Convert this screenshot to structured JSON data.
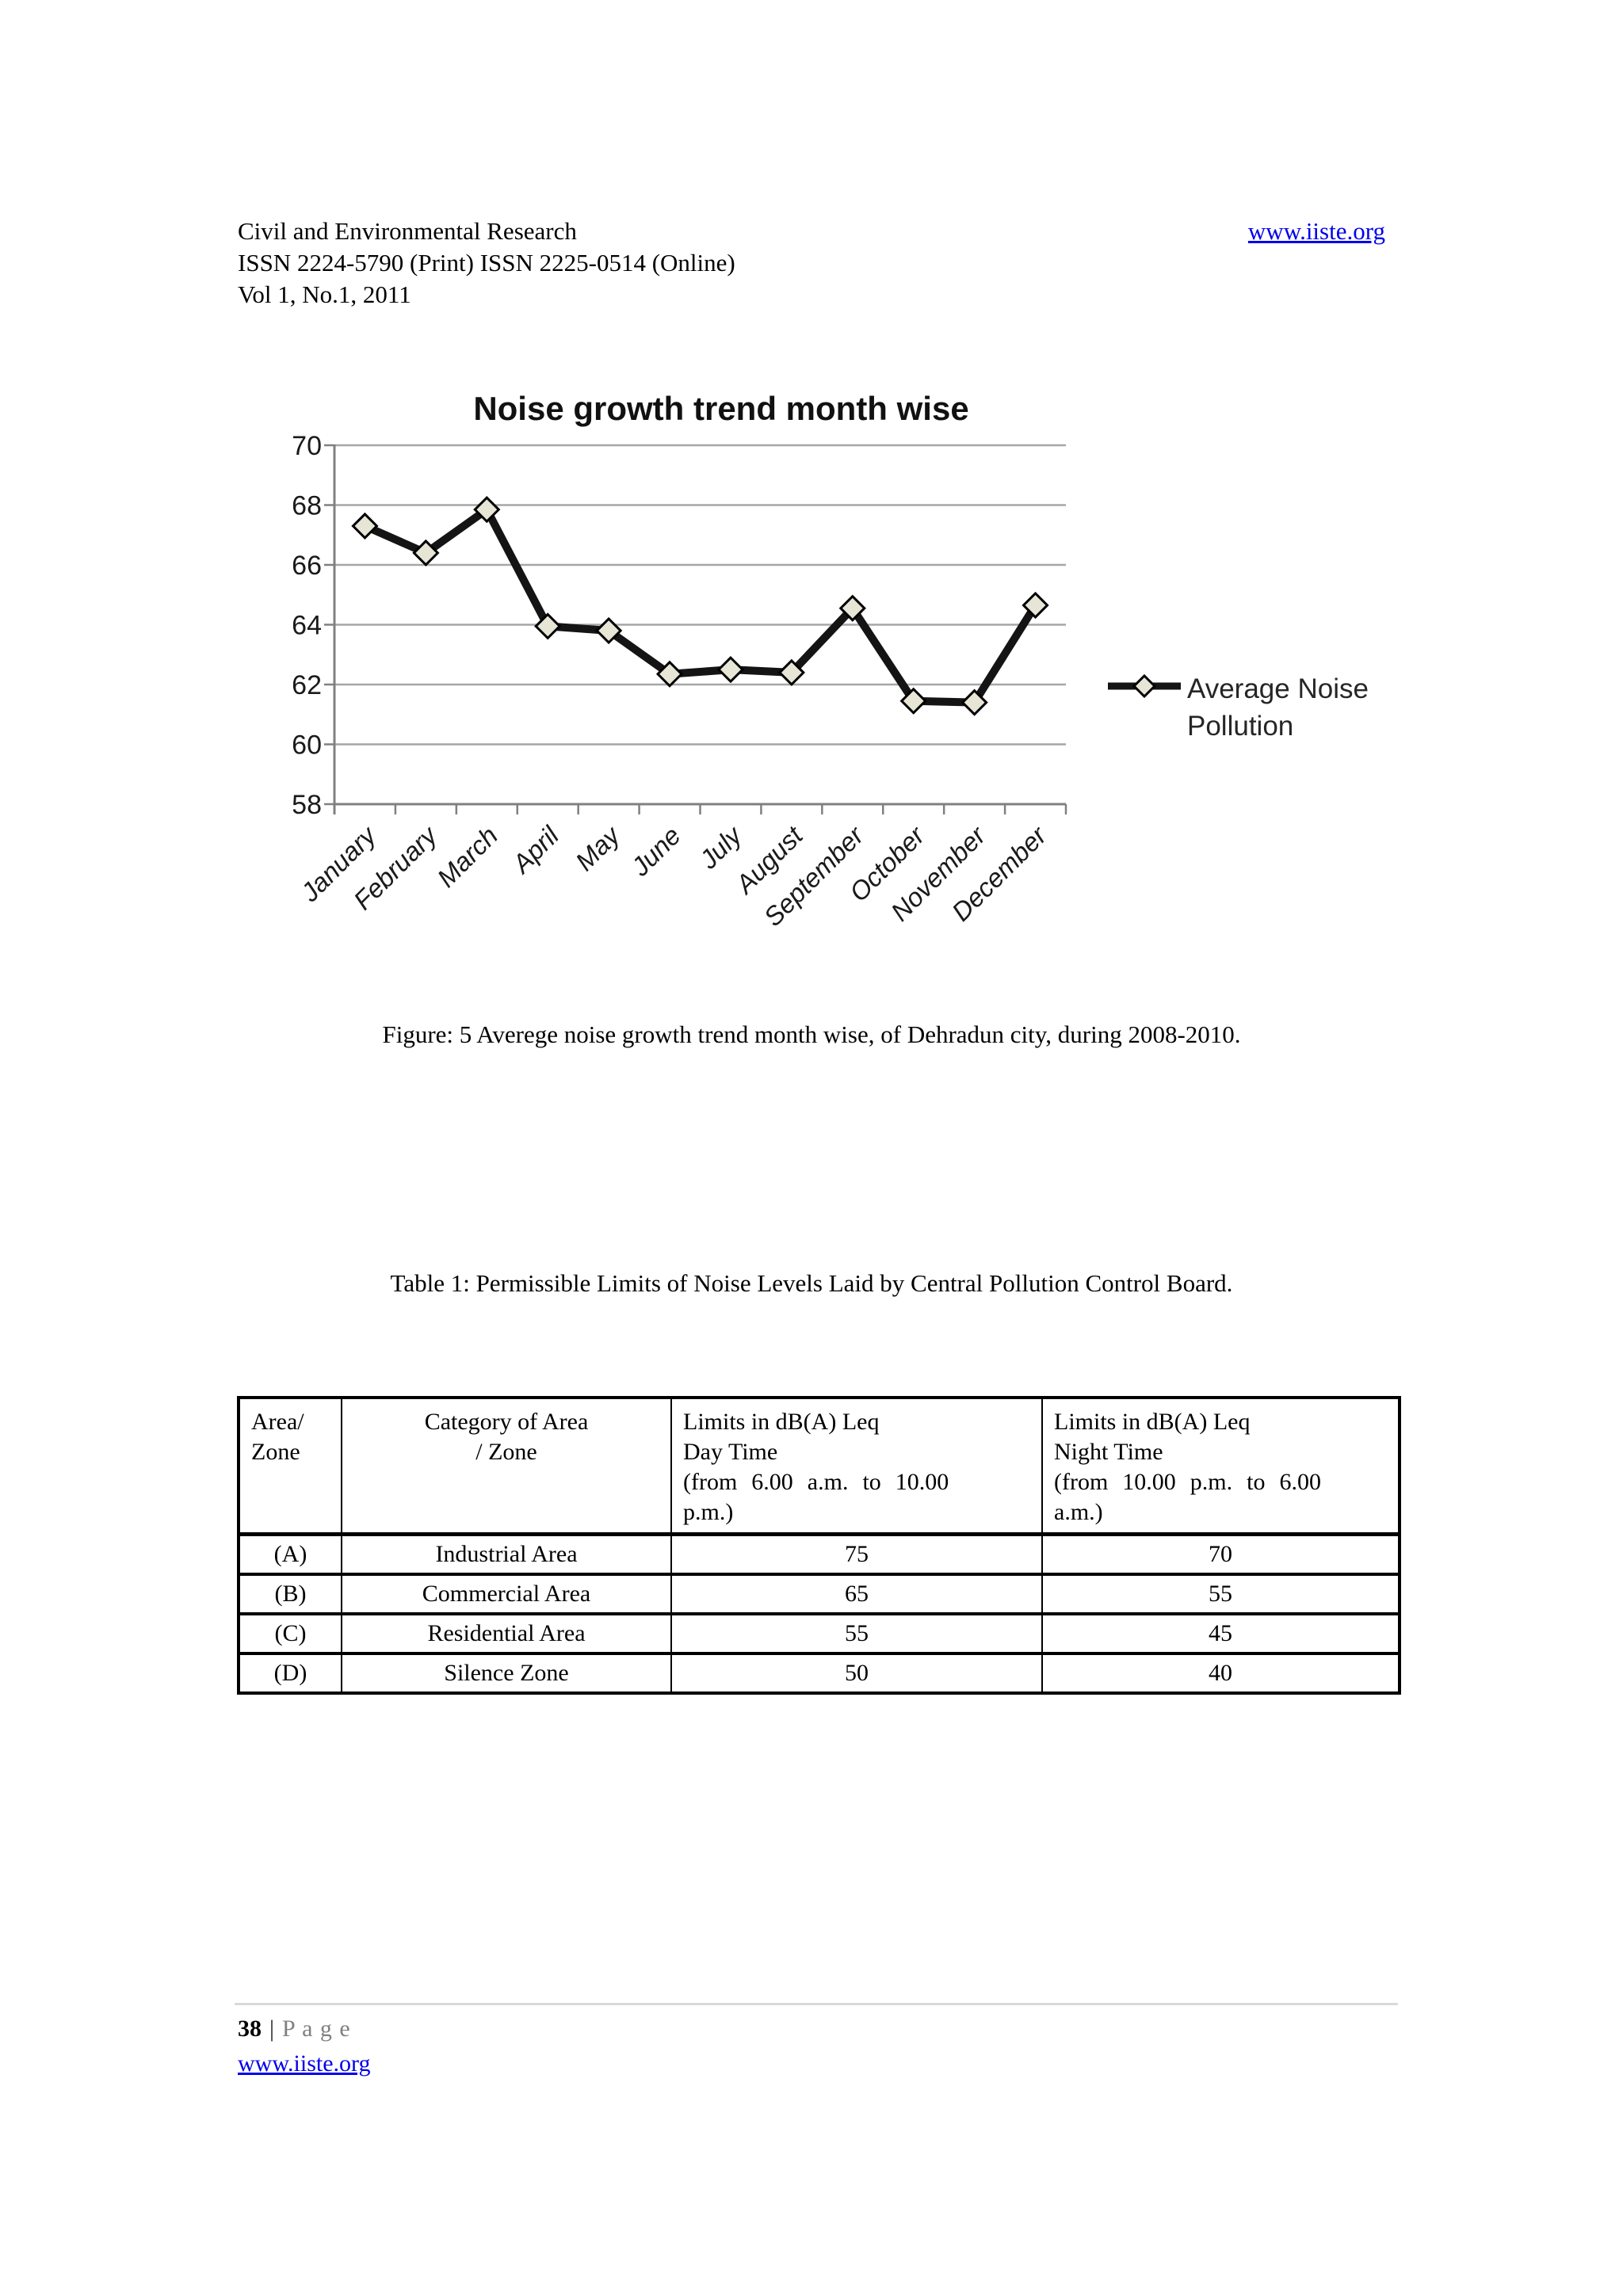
{
  "page": {
    "header": {
      "journal": "Civil and Environmental Research",
      "issn": "ISSN 2224-5790 (Print) ISSN 2225-0514 (Online)",
      "volume": "Vol 1, No.1, 2011",
      "website": "www.iiste.org",
      "link_color": "#0000EE"
    },
    "figure_caption": "Figure: 5 Averege noise growth trend month wise, of Dehradun city, during 2008-2010.",
    "table_title": "Table 1: Permissible Limits of Noise Levels Laid by Central Pollution Control Board.",
    "footer": {
      "page_number": "38",
      "separator": "|",
      "page_word": "P a g e",
      "website": "www.iiste.org"
    }
  },
  "chart_data": {
    "type": "line",
    "title": "Noise growth trend month wise",
    "categories": [
      "January",
      "February",
      "March",
      "April",
      "May",
      "June",
      "July",
      "August",
      "September",
      "October",
      "November",
      "December"
    ],
    "series": [
      {
        "name": "Average Noise Pollution",
        "values": [
          67.3,
          66.4,
          67.85,
          63.95,
          63.8,
          62.35,
          62.5,
          62.4,
          64.55,
          61.45,
          61.4,
          64.65
        ]
      }
    ],
    "xlabel": "",
    "ylabel": "",
    "ylim": [
      58,
      70
    ],
    "ytick_step": 2,
    "grid": true,
    "legend_position": "right",
    "legend_lines": [
      "Average Noise",
      "Pollution"
    ],
    "line_color": "#141414",
    "marker": "diamond",
    "marker_fill": "#e7e5d5",
    "marker_stroke": "#000000",
    "grid_color": "#a6a6a6",
    "axis_color": "#808080",
    "tick_label_color": "#1a1a1a"
  },
  "table": {
    "header": [
      [
        "Area/",
        "Zone"
      ],
      [
        "Category of Area",
        "/ Zone"
      ],
      [
        "Limits in dB(A) Leq",
        "Day Time",
        "(from 6.00 a.m. to 10.00",
        "p.m.)"
      ],
      [
        "Limits in dB(A) Leq",
        "Night Time",
        "(from 10.00 p.m. to 6.00",
        "a.m.)"
      ]
    ],
    "rows": [
      [
        "(A)",
        "Industrial Area",
        "75",
        "70"
      ],
      [
        "(B)",
        "Commercial Area",
        "65",
        "55"
      ],
      [
        "(C)",
        "Residential Area",
        "55",
        "45"
      ],
      [
        "(D)",
        "Silence Zone",
        "50",
        "40"
      ]
    ]
  }
}
